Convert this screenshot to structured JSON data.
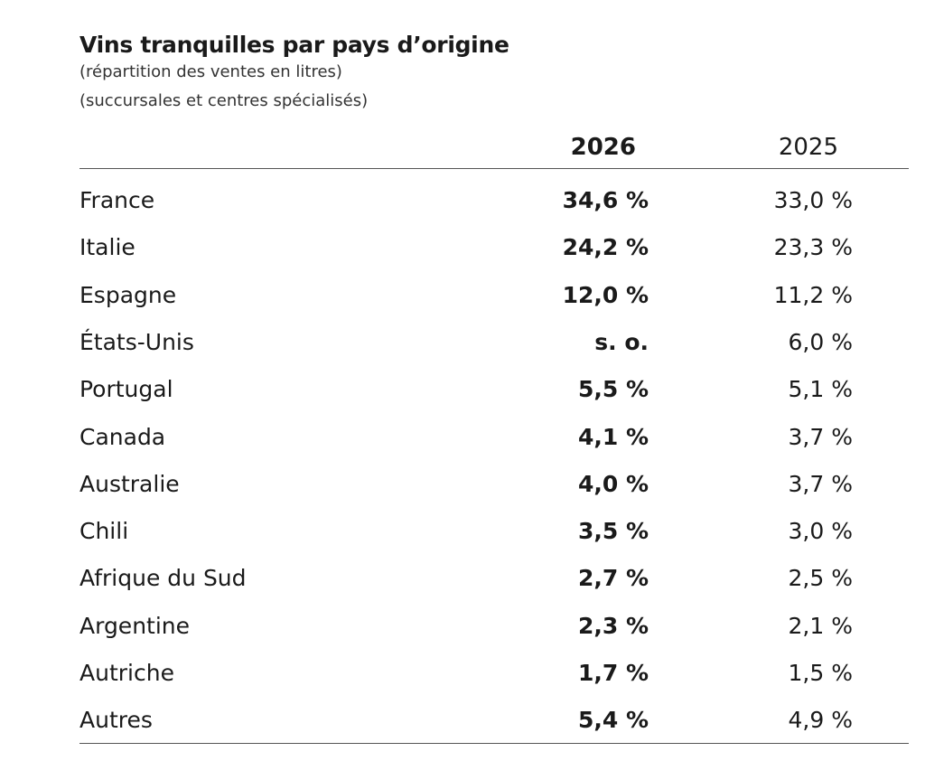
{
  "header": {
    "title": "Vins tranquilles par pays d’origine",
    "subtitles": [
      "(répartition des ventes en litres)",
      "(succursales et centres spécialisés)"
    ]
  },
  "table": {
    "columns": [
      "2026",
      "2025"
    ],
    "rows": [
      [
        "France",
        "34,6 %",
        "33,0 %"
      ],
      [
        "Italie",
        "24,2 %",
        "23,3 %"
      ],
      [
        "Espagne",
        "12,0 %",
        "11,2 %"
      ],
      [
        "États-Unis",
        "s. o.",
        "6,0 %"
      ],
      [
        "Portugal",
        "5,5 %",
        "5,1 %"
      ],
      [
        "Canada",
        "4,1 %",
        "3,7 %"
      ],
      [
        "Australie",
        "4,0 %",
        "3,7 %"
      ],
      [
        "Chili",
        "3,5 %",
        "3,0 %"
      ],
      [
        "Afrique du Sud",
        "2,7 %",
        "2,5 %"
      ],
      [
        "Argentine",
        "2,3 %",
        "2,1 %"
      ],
      [
        "Autriche",
        "1,7 %",
        "1,5 %"
      ],
      [
        "Autres",
        "5,4 %",
        "4,9 %"
      ]
    ]
  }
}
